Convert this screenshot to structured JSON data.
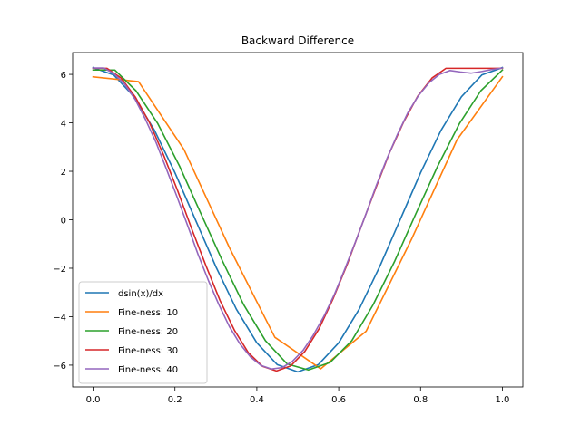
{
  "chart_data": {
    "type": "line",
    "title": "Backward Difference",
    "xlabel": "",
    "ylabel": "",
    "xlim": [
      -0.05,
      1.05
    ],
    "ylim": [
      -6.9,
      6.9
    ],
    "xticks": [
      0.0,
      0.2,
      0.4,
      0.6,
      0.8,
      1.0
    ],
    "xtick_labels": [
      "0.0",
      "0.2",
      "0.4",
      "0.6",
      "0.8",
      "1.0"
    ],
    "yticks": [
      -6,
      -4,
      -2,
      0,
      2,
      4,
      6
    ],
    "ytick_labels": [
      "−6",
      "−4",
      "−2",
      "0",
      "2",
      "4",
      "6"
    ],
    "grid": false,
    "legend_position": "lower-left",
    "series": [
      {
        "name": "dsin(x)/dx",
        "color": "#1f77b4",
        "x": [
          0.0,
          0.05,
          0.1,
          0.15,
          0.2,
          0.25,
          0.3,
          0.35,
          0.4,
          0.45,
          0.5,
          0.55,
          0.6,
          0.65,
          0.7,
          0.75,
          0.8,
          0.85,
          0.9,
          0.95,
          1.0
        ],
        "y": [
          6.28,
          5.98,
          5.08,
          3.69,
          1.94,
          0.0,
          -1.94,
          -3.69,
          -5.08,
          -5.98,
          -6.28,
          -5.98,
          -5.08,
          -3.69,
          -1.94,
          0.0,
          1.94,
          3.69,
          5.08,
          5.98,
          6.28
        ]
      },
      {
        "name": "Fine-ness: 10",
        "color": "#ff7f0e",
        "x": [
          0.0,
          0.111,
          0.222,
          0.333,
          0.444,
          0.556,
          0.667,
          0.778,
          0.889,
          1.0
        ],
        "y": [
          5.9,
          5.7,
          2.9,
          -1.15,
          -4.85,
          -6.15,
          -4.6,
          -0.8,
          3.3,
          5.9
        ]
      },
      {
        "name": "Fine-ness: 20",
        "color": "#2ca02c",
        "x": [
          0.0,
          0.053,
          0.105,
          0.158,
          0.211,
          0.263,
          0.316,
          0.368,
          0.421,
          0.474,
          0.526,
          0.579,
          0.632,
          0.684,
          0.737,
          0.789,
          0.842,
          0.895,
          0.947,
          1.0
        ],
        "y": [
          6.18,
          6.18,
          5.32,
          3.97,
          2.22,
          0.27,
          -1.7,
          -3.51,
          -4.99,
          -5.95,
          -6.2,
          -5.89,
          -4.99,
          -3.51,
          -1.7,
          0.27,
          2.22,
          3.97,
          5.32,
          6.18
        ]
      },
      {
        "name": "Fine-ness: 30",
        "color": "#d62728",
        "x": [
          0.0,
          0.034,
          0.069,
          0.103,
          0.138,
          0.172,
          0.207,
          0.241,
          0.276,
          0.31,
          0.345,
          0.379,
          0.414,
          0.448,
          0.483,
          0.517,
          0.552,
          0.586,
          0.621,
          0.655,
          0.69,
          0.724,
          0.759,
          0.793,
          0.828,
          0.862,
          0.897,
          0.931,
          0.966,
          1.0
        ],
        "y": [
          6.25,
          6.25,
          5.84,
          5.07,
          4.0,
          2.68,
          1.18,
          -0.38,
          -1.91,
          -3.33,
          -4.55,
          -5.48,
          -6.05,
          -6.24,
          -6.03,
          -5.44,
          -4.5,
          -3.27,
          -1.83,
          -0.28,
          1.28,
          2.76,
          4.05,
          5.1,
          5.85,
          6.25,
          6.25,
          6.25,
          6.25,
          6.25
        ]
      },
      {
        "name": "Fine-ness: 40",
        "color": "#9467bd",
        "x": [
          0.0,
          0.026,
          0.051,
          0.077,
          0.103,
          0.128,
          0.154,
          0.179,
          0.205,
          0.231,
          0.256,
          0.282,
          0.308,
          0.333,
          0.359,
          0.385,
          0.41,
          0.436,
          0.462,
          0.487,
          0.513,
          0.538,
          0.564,
          0.59,
          0.615,
          0.641,
          0.667,
          0.692,
          0.718,
          0.744,
          0.769,
          0.795,
          0.821,
          0.846,
          0.872,
          0.897,
          0.923,
          0.949,
          0.974,
          1.0
        ],
        "y": [
          6.26,
          6.26,
          6.03,
          5.6,
          4.96,
          4.14,
          3.18,
          2.1,
          0.95,
          -0.24,
          -1.41,
          -2.52,
          -3.53,
          -4.41,
          -5.13,
          -5.67,
          -6.01,
          -6.16,
          -6.1,
          -5.84,
          -5.39,
          -4.76,
          -3.98,
          -3.06,
          -2.03,
          -0.91,
          0.26,
          1.42,
          2.53,
          3.54,
          4.42,
          5.13,
          5.66,
          6.0,
          6.16,
          6.1,
          6.05,
          6.12,
          6.2,
          6.26
        ]
      }
    ]
  }
}
